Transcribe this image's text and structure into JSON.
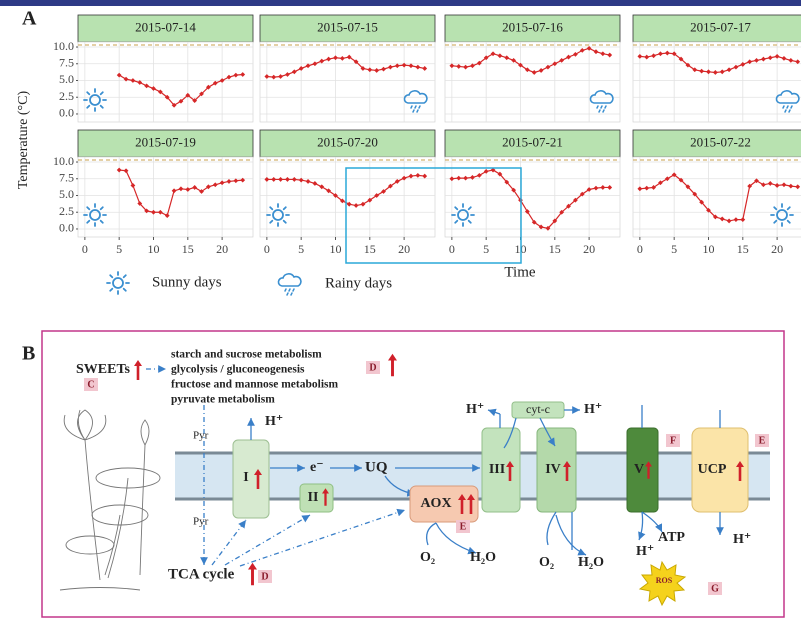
{
  "panel_a": {
    "label": "A",
    "y_label": "Temperature (°C)",
    "x_label": "Time",
    "legend": [
      "Sunny days",
      "Rainy days"
    ]
  },
  "chart_data": [
    {
      "type": "line",
      "title": "2015-07-14",
      "color": "#d62728",
      "xlim": [
        -1,
        24.5
      ],
      "ylim": [
        -1.2,
        10.75
      ],
      "x": [
        5,
        6,
        7,
        8,
        9,
        10,
        11,
        12,
        13,
        14,
        15,
        16,
        17,
        18,
        19,
        20,
        21,
        22,
        23
      ],
      "values": [
        5.8,
        5.2,
        5.0,
        4.7,
        4.2,
        3.8,
        3.3,
        2.5,
        1.3,
        1.9,
        2.8,
        2.0,
        3.0,
        4.0,
        4.6,
        5.0,
        5.5,
        5.8,
        5.9
      ],
      "yticks": [
        {
          "value": 0,
          "label": "0.0"
        },
        {
          "value": 2.5,
          "label": "2.5"
        },
        {
          "value": 5,
          "label": "5.0"
        },
        {
          "value": 7.5,
          "label": "7.5"
        },
        {
          "value": 10,
          "label": "10.0"
        }
      ]
    },
    {
      "type": "line",
      "title": "2015-07-15",
      "color": "#d62728",
      "xlim": [
        -1,
        24.5
      ],
      "ylim": [
        -1.2,
        10.75
      ],
      "x": [
        0,
        1,
        2,
        3,
        4,
        5,
        6,
        7,
        8,
        9,
        10,
        11,
        12,
        13,
        14,
        15,
        16,
        17,
        18,
        19,
        20,
        21,
        22,
        23
      ],
      "values": [
        5.6,
        5.5,
        5.6,
        5.9,
        6.3,
        6.8,
        7.2,
        7.5,
        7.9,
        8.2,
        8.4,
        8.3,
        8.5,
        7.8,
        6.8,
        6.6,
        6.5,
        6.7,
        7.0,
        7.2,
        7.3,
        7.2,
        7.0,
        6.8
      ]
    },
    {
      "type": "line",
      "title": "2015-07-16",
      "color": "#d62728",
      "xlim": [
        -1,
        24.5
      ],
      "ylim": [
        -1.2,
        10.75
      ],
      "x": [
        0,
        1,
        2,
        3,
        4,
        5,
        6,
        7,
        8,
        9,
        10,
        11,
        12,
        13,
        14,
        15,
        16,
        17,
        18,
        19,
        20,
        21,
        22,
        23
      ],
      "values": [
        7.2,
        7.1,
        7.0,
        7.2,
        7.6,
        8.4,
        9.0,
        8.7,
        8.4,
        8.0,
        7.3,
        6.6,
        6.2,
        6.5,
        7.0,
        7.5,
        8.0,
        8.5,
        8.9,
        9.5,
        9.8,
        9.3,
        9.0,
        8.8
      ]
    },
    {
      "type": "line",
      "title": "2015-07-17",
      "color": "#d62728",
      "xlim": [
        -1,
        24.5
      ],
      "ylim": [
        -1.2,
        10.75
      ],
      "x": [
        0,
        1,
        2,
        3,
        4,
        5,
        6,
        7,
        8,
        9,
        10,
        11,
        12,
        13,
        14,
        15,
        16,
        17,
        18,
        19,
        20,
        21,
        22,
        23
      ],
      "values": [
        8.6,
        8.5,
        8.7,
        9.0,
        9.1,
        9.0,
        8.2,
        7.3,
        6.6,
        6.4,
        6.3,
        6.2,
        6.3,
        6.6,
        7.0,
        7.4,
        7.8,
        8.0,
        8.2,
        8.4,
        8.6,
        8.3,
        8.0,
        7.8
      ]
    },
    {
      "type": "line",
      "title": "2015-07-19",
      "color": "#d62728",
      "xlim": [
        -1,
        24.5
      ],
      "ylim": [
        -1.2,
        10.75
      ],
      "x": [
        5,
        6,
        7,
        8,
        9,
        10,
        11,
        12,
        13,
        14,
        15,
        16,
        17,
        18,
        19,
        20,
        21,
        22,
        23
      ],
      "values": [
        8.8,
        8.7,
        6.5,
        3.8,
        2.7,
        2.5,
        2.5,
        2.0,
        5.7,
        6.0,
        5.9,
        6.2,
        5.6,
        6.3,
        6.6,
        6.9,
        7.1,
        7.2,
        7.3
      ],
      "yticks": [
        {
          "value": 0,
          "label": "0.0"
        },
        {
          "value": 2.5,
          "label": "2.5"
        },
        {
          "value": 5,
          "label": "5.0"
        },
        {
          "value": 7.5,
          "label": "7.5"
        },
        {
          "value": 10,
          "label": "10.0"
        }
      ],
      "xticks": [
        0,
        5,
        10,
        15,
        20
      ]
    },
    {
      "type": "line",
      "title": "2015-07-20",
      "color": "#d62728",
      "xlim": [
        -1,
        24.5
      ],
      "ylim": [
        -1.2,
        10.75
      ],
      "x": [
        0,
        1,
        2,
        3,
        4,
        5,
        6,
        7,
        8,
        9,
        10,
        11,
        12,
        13,
        14,
        15,
        16,
        17,
        18,
        19,
        20,
        21,
        22,
        23
      ],
      "values": [
        7.4,
        7.4,
        7.4,
        7.4,
        7.4,
        7.3,
        7.1,
        6.8,
        6.3,
        5.7,
        5.0,
        4.2,
        3.7,
        3.5,
        3.7,
        4.3,
        5.0,
        5.6,
        6.4,
        7.1,
        7.6,
        7.9,
        8.0,
        7.9
      ],
      "xticks": [
        0,
        5,
        10,
        15,
        20
      ]
    },
    {
      "type": "line",
      "title": "2015-07-21",
      "color": "#d62728",
      "xlim": [
        -1,
        24.5
      ],
      "ylim": [
        -1.2,
        10.75
      ],
      "x": [
        0,
        1,
        2,
        3,
        4,
        5,
        6,
        7,
        8,
        9,
        10,
        11,
        12,
        13,
        14,
        15,
        16,
        17,
        18,
        19,
        20,
        21,
        22,
        23
      ],
      "values": [
        7.5,
        7.6,
        7.6,
        7.7,
        8.0,
        8.6,
        8.8,
        8.2,
        7.0,
        5.8,
        4.3,
        2.6,
        1.0,
        0.3,
        0.1,
        1.2,
        2.5,
        3.4,
        4.3,
        5.2,
        5.9,
        6.1,
        6.2,
        6.2
      ],
      "xticks": [
        0,
        5,
        10,
        15,
        20
      ]
    },
    {
      "type": "line",
      "title": "2015-07-22",
      "color": "#d62728",
      "xlim": [
        -1,
        24.5
      ],
      "ylim": [
        -1.2,
        10.75
      ],
      "x": [
        0,
        1,
        2,
        3,
        4,
        5,
        6,
        7,
        8,
        9,
        10,
        11,
        12,
        13,
        14,
        15,
        16,
        17,
        18,
        19,
        20,
        21,
        22,
        23
      ],
      "values": [
        6.0,
        6.1,
        6.2,
        6.9,
        7.5,
        8.1,
        7.3,
        6.3,
        5.2,
        4.0,
        2.8,
        1.8,
        1.5,
        1.2,
        1.4,
        1.4,
        6.4,
        7.2,
        6.6,
        6.8,
        6.5,
        6.6,
        6.4,
        6.3
      ],
      "xticks": [
        0,
        5,
        10,
        15,
        20
      ]
    }
  ],
  "panel_b": {
    "label": "B",
    "sweets": "SWEETs",
    "pathways": [
      "starch and sucrose metabolism",
      "glycolysis / gluconeogenesis",
      "fructose and mannose metabolism",
      "pyruvate metabolism"
    ],
    "pyr": [
      "Pyr",
      "Pyr"
    ],
    "complexes": {
      "i": "I",
      "ii": "II",
      "iii": "III",
      "iv": "IV",
      "v": "V",
      "aox": "AOX",
      "ucp": "UCP",
      "cytc": "cyt-c"
    },
    "ubiquinone": "UQ",
    "electron": "e⁻",
    "protons": [
      "H⁺",
      "H⁺",
      "H⁺",
      "H⁺",
      "H⁺"
    ],
    "atp": "ATP",
    "oxygen": [
      "O₂",
      "O₂"
    ],
    "water": [
      "H₂O",
      "H₂O"
    ],
    "tca": "TCA cycle",
    "ros": "ROS",
    "badges": [
      "C",
      "D",
      "D",
      "E",
      "E",
      "F",
      "G"
    ]
  }
}
